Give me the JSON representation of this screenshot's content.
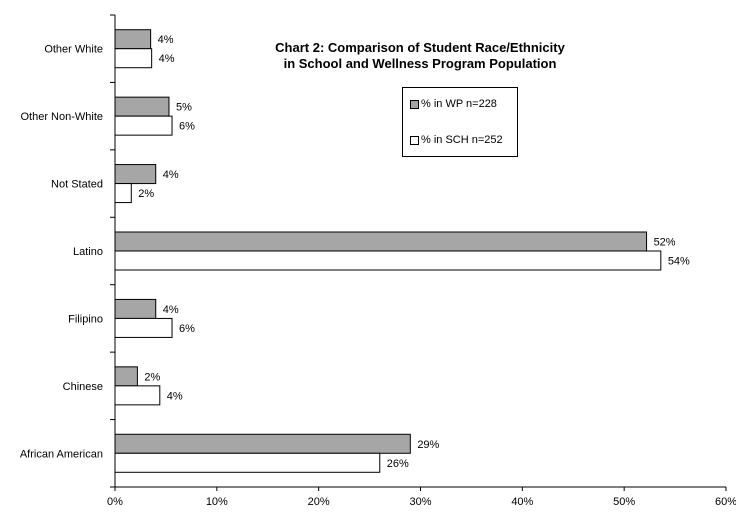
{
  "chart_data": {
    "type": "bar",
    "orientation": "horizontal",
    "title": "Chart 2: Comparison of Student Race/Ethnicity in School and Wellness Program Population",
    "title_lines": [
      "Chart 2: Comparison of Student Race/Ethnicity",
      "in School and Wellness Program Population"
    ],
    "categories": [
      "Other White",
      "Other Non-White",
      "Not Stated",
      "Latino",
      "Filipino",
      "Chinese",
      "African American"
    ],
    "series": [
      {
        "name": "% in WP n=228",
        "color": "#a6a6a6",
        "values": [
          3.5,
          5.3,
          4.0,
          52.2,
          4.0,
          2.2,
          29.0
        ],
        "labels": [
          "4%",
          "5%",
          "4%",
          "52%",
          "4%",
          "2%",
          "29%"
        ]
      },
      {
        "name": "% in SCH n=252",
        "color": "#ffffff",
        "values": [
          3.6,
          5.6,
          1.6,
          53.6,
          5.6,
          4.4,
          26.0
        ],
        "labels": [
          "4%",
          "6%",
          "2%",
          "54%",
          "6%",
          "4%",
          "26%"
        ]
      }
    ],
    "xlim": [
      0,
      60
    ],
    "xticks": [
      0,
      10,
      20,
      30,
      40,
      50,
      60
    ],
    "xtick_labels": [
      "0%",
      "10%",
      "20%",
      "30%",
      "40%",
      "50%",
      "60%"
    ],
    "xlabel": "",
    "ylabel": "",
    "grid": false,
    "legend_position": "top-right, inside plot"
  }
}
